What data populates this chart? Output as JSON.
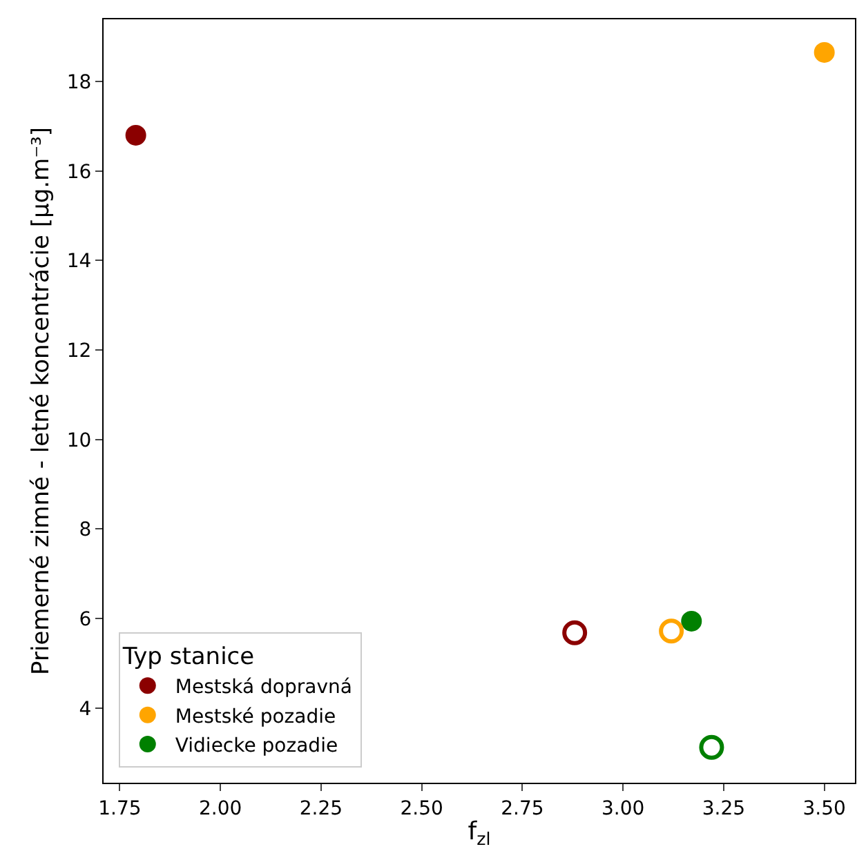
{
  "chart_data": {
    "type": "scatter",
    "xlabel": "f$_{zl}$",
    "ylabel": "Priemerné zimné - letné koncentrácie [μg.m⁻³]",
    "legend_title": "Typ stanice",
    "legend": "bottom left",
    "grid": false,
    "marker": "circle",
    "xlim": [
      1.71,
      3.576
    ],
    "ylim": [
      2.33,
      19.39
    ],
    "xticks": [
      1.75,
      {
        "value": 2,
        "label": "2.00"
      },
      2.25,
      {
        "value": 2.5,
        "label": "2.50"
      },
      2.75,
      {
        "value": 3,
        "label": "3.00"
      },
      3.25,
      {
        "value": 3.5,
        "label": "3.50"
      }
    ],
    "yticks": [
      4,
      6,
      8,
      10,
      12,
      14,
      16,
      18
    ],
    "series": [
      {
        "name": "Mestská dopravná",
        "color": "#8b0000",
        "x": [
          1.79
        ],
        "values": [
          16.8
        ]
      },
      {
        "name": "Mestské pozadie",
        "color": "#ffa500",
        "x": [
          3.5
        ],
        "values": [
          18.65
        ]
      },
      {
        "name": "Vidiecke pozadie",
        "color": "#008000",
        "x": [
          3.17
        ],
        "values": [
          5.94
        ]
      },
      {
        "color": "#8b0000",
        "marker": "circle-open",
        "x": [
          2.88
        ],
        "values": [
          5.68
        ]
      },
      {
        "color": "#ffa500",
        "marker": "circle-open",
        "x": [
          3.12
        ],
        "values": [
          5.72
        ]
      },
      {
        "color": "#008000",
        "marker": "circle-open",
        "x": [
          3.22
        ],
        "values": [
          3.12
        ]
      }
    ]
  }
}
